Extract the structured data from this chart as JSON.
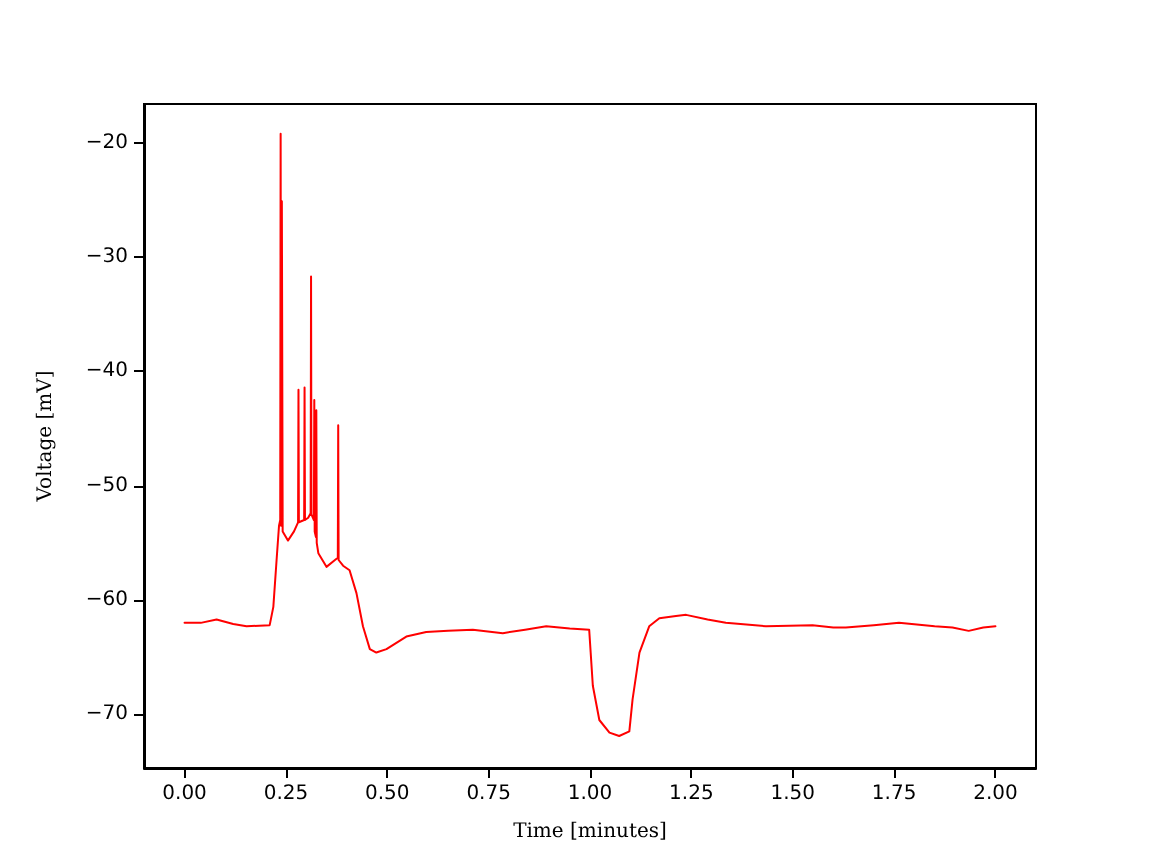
{
  "chart_data": {
    "type": "line",
    "xlabel": "Time [minutes]",
    "ylabel": "Voltage [mV]",
    "color": "#ff0000",
    "line_style": "solid",
    "marker": "none",
    "x": [
      0,
      0.04,
      0.079,
      0.12,
      0.153,
      0.21,
      0.219,
      0.227,
      0.233,
      0.236,
      0.237,
      0.238,
      0.24,
      0.242,
      0.255,
      0.27,
      0.28,
      0.281,
      0.282,
      0.295,
      0.296,
      0.297,
      0.305,
      0.311,
      0.312,
      0.313,
      0.319,
      0.32,
      0.321,
      0.324,
      0.325,
      0.326,
      0.33,
      0.35,
      0.371,
      0.378,
      0.379,
      0.38,
      0.391,
      0.407,
      0.424,
      0.44,
      0.457,
      0.473,
      0.498,
      0.547,
      0.596,
      0.65,
      0.711,
      0.785,
      0.84,
      0.892,
      0.95,
      0.998,
      1.007,
      1.023,
      1.048,
      1.072,
      1.097,
      1.105,
      1.122,
      1.146,
      1.171,
      1.212,
      1.237,
      1.29,
      1.335,
      1.434,
      1.549,
      1.6,
      1.631,
      1.7,
      1.762,
      1.85,
      1.894,
      1.934,
      1.97,
      2.0
    ],
    "values": [
      -62.0,
      -62.0,
      -61.7,
      -62.1,
      -62.3,
      -62.2,
      -60.6,
      -56.5,
      -53.5,
      -53.0,
      -19.2,
      -53.5,
      -25.1,
      -54.0,
      -54.8,
      -54.0,
      -53.2,
      -41.6,
      -53.2,
      -53.0,
      -41.4,
      -53.0,
      -52.8,
      -52.4,
      -31.7,
      -52.5,
      -53.0,
      -42.5,
      -54.0,
      -54.5,
      -43.4,
      -55.0,
      -55.9,
      -57.1,
      -56.5,
      -56.3,
      -44.7,
      -56.5,
      -57.0,
      -57.4,
      -59.4,
      -62.3,
      -64.3,
      -64.6,
      -64.3,
      -63.2,
      -62.8,
      -62.7,
      -62.6,
      -62.9,
      -62.6,
      -62.3,
      -62.5,
      -62.6,
      -67.5,
      -70.5,
      -71.6,
      -71.9,
      -71.5,
      -68.7,
      -64.6,
      -62.3,
      -61.6,
      -61.4,
      -61.3,
      -61.7,
      -62.0,
      -62.3,
      -62.2,
      -62.4,
      -62.4,
      -62.2,
      -62.0,
      -62.3,
      -62.4,
      -62.7,
      -62.4,
      -62.3
    ],
    "xlim": [
      -0.1,
      2.1
    ],
    "ylim": [
      -74.7,
      -16.6
    ],
    "xticks": [
      {
        "value": 0,
        "label": "0.00"
      },
      {
        "value": 0.25,
        "label": "0.25"
      },
      {
        "value": 0.5,
        "label": "0.50"
      },
      {
        "value": 0.75,
        "label": "0.75"
      },
      {
        "value": 1,
        "label": "1.00"
      },
      {
        "value": 1.25,
        "label": "1.25"
      },
      {
        "value": 1.5,
        "label": "1.50"
      },
      {
        "value": 1.75,
        "label": "1.75"
      },
      {
        "value": 2,
        "label": "2.00"
      }
    ],
    "yticks": [
      {
        "value": -70,
        "label": "−70"
      },
      {
        "value": -60,
        "label": "−60"
      },
      {
        "value": -50,
        "label": "−50"
      },
      {
        "value": -40,
        "label": "−40"
      },
      {
        "value": -30,
        "label": "−30"
      },
      {
        "value": -20,
        "label": "−20"
      }
    ]
  }
}
